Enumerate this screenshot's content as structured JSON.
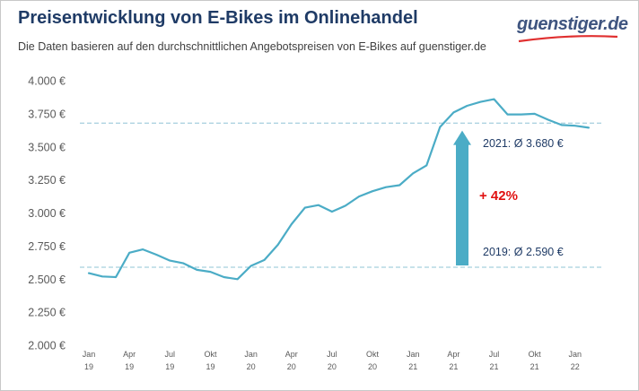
{
  "header": {
    "title": "Preisentwicklung von E-Bikes im Onlinehandel",
    "subtitle": "Die Daten basieren auf den durchschnittlichen Angebotspreisen von E-Bikes auf guenstiger.de",
    "logo_text": "guenstiger.de"
  },
  "colors": {
    "title": "#1f3b66",
    "line": "#4bacc6",
    "arrow": "#4bacc6",
    "percent": "#e01010",
    "reference": "#8fc4d6",
    "logo": "#3f5580",
    "logo_swoosh": "#e03030"
  },
  "chart_data": {
    "type": "line",
    "title": "Preisentwicklung von E-Bikes im Onlinehandel",
    "xlabel": "",
    "ylabel": "",
    "ylim": [
      2000,
      4000
    ],
    "y_ticks": [
      {
        "value": 2000,
        "label": "2.000 €"
      },
      {
        "value": 2250,
        "label": "2.250 €"
      },
      {
        "value": 2500,
        "label": "2.500 €"
      },
      {
        "value": 2750,
        "label": "2.750 €"
      },
      {
        "value": 3000,
        "label": "3.000 €"
      },
      {
        "value": 3250,
        "label": "3.250 €"
      },
      {
        "value": 3500,
        "label": "3.500 €"
      },
      {
        "value": 3750,
        "label": "3.750 €"
      },
      {
        "value": 4000,
        "label": "4.000 €"
      }
    ],
    "x_ticks": [
      {
        "index": 0,
        "month": "Jan",
        "year": "19"
      },
      {
        "index": 3,
        "month": "Apr",
        "year": "19"
      },
      {
        "index": 6,
        "month": "Jul",
        "year": "19"
      },
      {
        "index": 9,
        "month": "Okt",
        "year": "19"
      },
      {
        "index": 12,
        "month": "Jan",
        "year": "20"
      },
      {
        "index": 15,
        "month": "Apr",
        "year": "20"
      },
      {
        "index": 18,
        "month": "Jul",
        "year": "20"
      },
      {
        "index": 21,
        "month": "Okt",
        "year": "20"
      },
      {
        "index": 24,
        "month": "Jan",
        "year": "21"
      },
      {
        "index": 27,
        "month": "Apr",
        "year": "21"
      },
      {
        "index": 30,
        "month": "Jul",
        "year": "21"
      },
      {
        "index": 33,
        "month": "Okt",
        "year": "21"
      },
      {
        "index": 36,
        "month": "Jan",
        "year": "22"
      }
    ],
    "x": [
      "Jan 19",
      "Feb 19",
      "Mär 19",
      "Apr 19",
      "Mai 19",
      "Jun 19",
      "Jul 19",
      "Aug 19",
      "Sep 19",
      "Okt 19",
      "Nov 19",
      "Dez 19",
      "Jan 20",
      "Feb 20",
      "Mär 20",
      "Apr 20",
      "Mai 20",
      "Jun 20",
      "Jul 20",
      "Aug 20",
      "Sep 20",
      "Okt 20",
      "Nov 20",
      "Dez 20",
      "Jan 21",
      "Feb 21",
      "Mär 21",
      "Apr 21",
      "Mai 21",
      "Jun 21",
      "Jul 21",
      "Aug 21",
      "Sep 21",
      "Okt 21",
      "Nov 21",
      "Dez 21",
      "Jan 22",
      "Feb 22"
    ],
    "values": [
      2545,
      2520,
      2515,
      2700,
      2725,
      2685,
      2640,
      2620,
      2570,
      2555,
      2515,
      2500,
      2600,
      2645,
      2760,
      2915,
      3040,
      3060,
      3010,
      3055,
      3125,
      3165,
      3195,
      3210,
      3300,
      3360,
      3650,
      3760,
      3810,
      3840,
      3860,
      3745,
      3745,
      3750,
      3705,
      3665,
      3660,
      3645
    ],
    "series_name": "",
    "reference_lines": [
      {
        "value": 2590,
        "label": "2019: Ø 2.590 €"
      },
      {
        "value": 3680,
        "label": "2021: Ø 3.680 €"
      }
    ],
    "change_label": "+ 42%",
    "grid": false,
    "legend": "none"
  }
}
